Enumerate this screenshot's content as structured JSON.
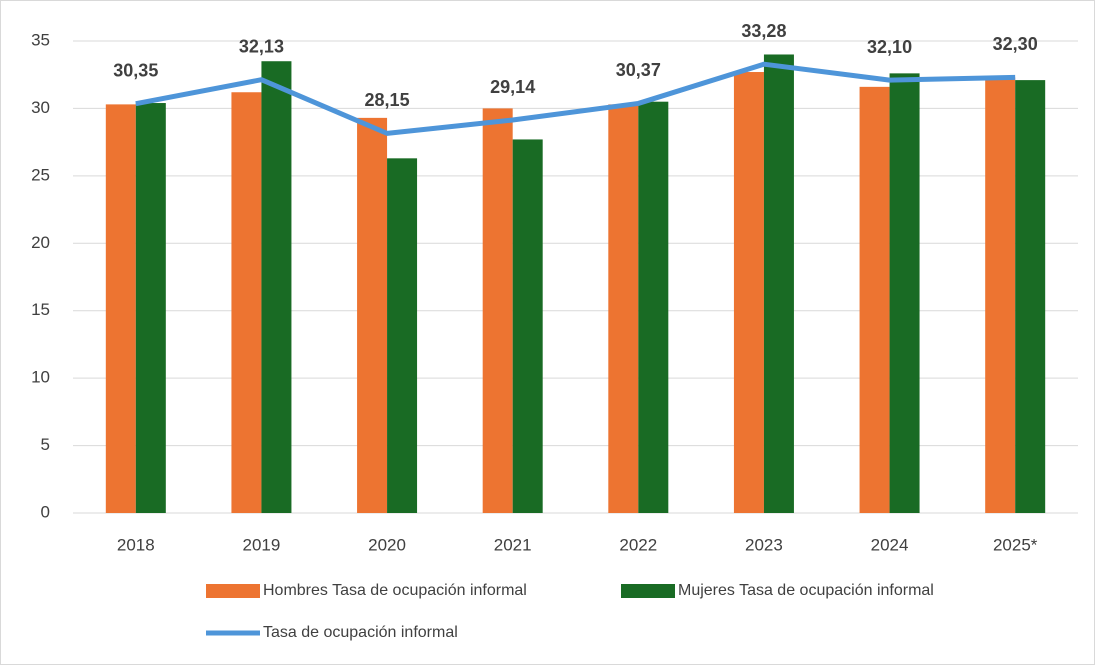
{
  "chart_data": {
    "type": "bar",
    "categories": [
      "2018",
      "2019",
      "2020",
      "2021",
      "2022",
      "2023",
      "2024",
      "2025*"
    ],
    "series": [
      {
        "name": "Hombres Tasa de ocupación informal",
        "color": "#ed7431",
        "type": "bar",
        "values": [
          30.3,
          31.2,
          29.3,
          30.0,
          30.3,
          32.7,
          31.6,
          32.3
        ]
      },
      {
        "name": "Mujeres Tasa de ocupación informal",
        "color": "#196b24",
        "type": "bar",
        "values": [
          30.4,
          33.5,
          26.3,
          27.7,
          30.5,
          34.0,
          32.6,
          32.1
        ]
      },
      {
        "name": "Tasa de ocupación informal",
        "color": "#4e95d9",
        "type": "line",
        "values": [
          30.35,
          32.13,
          28.15,
          29.14,
          30.37,
          33.28,
          32.1,
          32.3
        ],
        "value_labels": [
          "30,35",
          "32,13",
          "28,15",
          "29,14",
          "30,37",
          "33,28",
          "32,10",
          "32,30"
        ]
      }
    ],
    "ylim": [
      0,
      35
    ],
    "yticks": [
      0,
      5,
      10,
      15,
      20,
      25,
      30,
      35
    ],
    "grid": true
  }
}
